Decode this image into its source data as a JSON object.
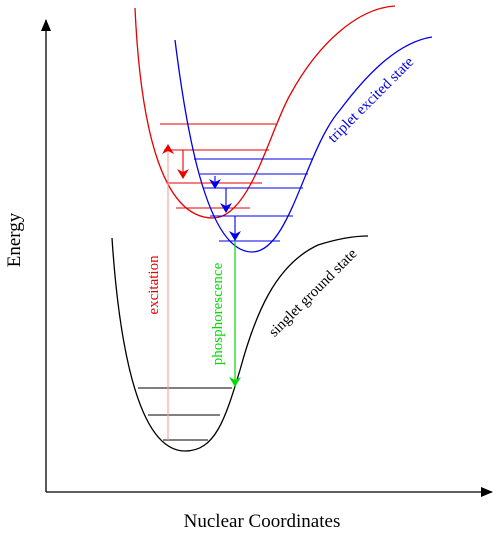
{
  "axes": {
    "x_label": "Nuclear Coordinates",
    "y_label": "Energy"
  },
  "curves": {
    "singlet_ground": {
      "label": "singlet ground state",
      "color": "#000000"
    },
    "singlet_excited": {
      "label": "",
      "color": "#e60000"
    },
    "triplet_excited": {
      "label": "triplet excited state",
      "color": "#0000e6"
    }
  },
  "transitions": {
    "excitation": {
      "label": "excitation",
      "color": "#e60000",
      "line_color": "#ff9a9a"
    },
    "phosphorescence": {
      "label": "phosphorescence",
      "color": "#00dd00"
    },
    "relaxation_red": {
      "color": "#e60000"
    },
    "relaxation_blue": {
      "color": "#0000e6"
    }
  },
  "vibrational_levels": {
    "singlet_ground": 3,
    "singlet_excited": 4,
    "triplet_excited": 5
  }
}
